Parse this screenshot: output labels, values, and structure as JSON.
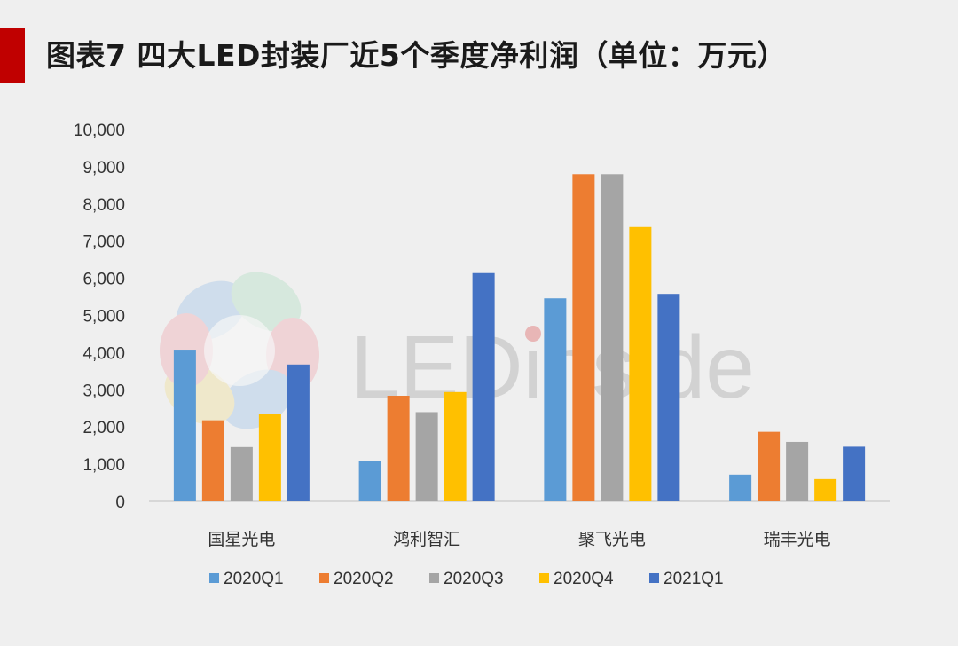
{
  "page": {
    "title": "图表7 四大LED封装厂近5个季度净利润（单位：万元）",
    "accent_color": "#c00000",
    "watermark": "LEDinside"
  },
  "chart_data": {
    "type": "bar",
    "categories": [
      "国星光电",
      "鸿利智汇",
      "聚飞光电",
      "瑞丰光电"
    ],
    "series": [
      {
        "name": "2020Q1",
        "color": "#5b9bd5",
        "values": [
          4080,
          1080,
          5460,
          720
        ]
      },
      {
        "name": "2020Q2",
        "color": "#ed7d31",
        "values": [
          2180,
          2840,
          8800,
          1870
        ]
      },
      {
        "name": "2020Q3",
        "color": "#a5a5a5",
        "values": [
          1460,
          2400,
          8800,
          1600
        ]
      },
      {
        "name": "2020Q4",
        "color": "#ffc000",
        "values": [
          2360,
          2940,
          7380,
          600
        ]
      },
      {
        "name": "2021Q1",
        "color": "#4472c4",
        "values": [
          3680,
          6140,
          5580,
          1470
        ]
      }
    ],
    "ylim": [
      0,
      10000
    ],
    "yticks": [
      "0",
      "1,000",
      "2,000",
      "3,000",
      "4,000",
      "5,000",
      "6,000",
      "7,000",
      "8,000",
      "9,000",
      "10,000"
    ],
    "xlabel": "",
    "ylabel": "",
    "grid": false,
    "legend": "bottom"
  }
}
